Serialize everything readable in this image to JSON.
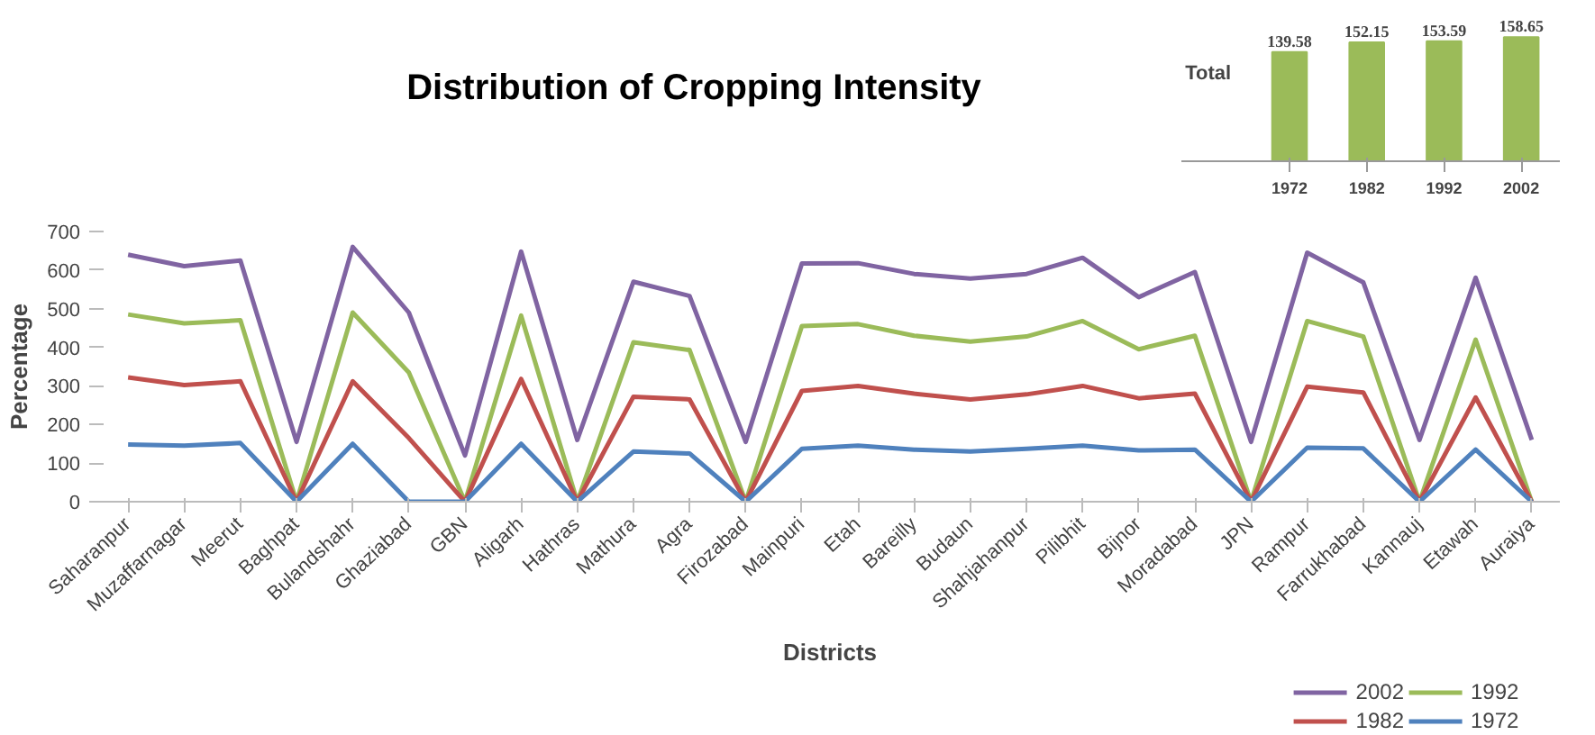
{
  "chart_data": [
    {
      "type": "line",
      "title": "Distribution of Cropping Intensity",
      "xlabel": "Districts",
      "ylabel": "Percentage",
      "categories": [
        "Saharanpur",
        "Muzaffarnagar",
        "Meerut",
        "Baghpat",
        "Bulandshahr",
        "Ghaziabad",
        "GBN",
        "Aligarh",
        "Hathras",
        "Mathura",
        "Agra",
        "Firozabad",
        "Mainpuri",
        "Etah",
        "Bareilly",
        "Budaun",
        "Shahjahanpur",
        "Pilibhit",
        "Bijnor",
        "Moradabad",
        "JPN",
        "Rampur",
        "Farrukhabad",
        "Kannauj",
        "Etawah",
        "Auraiya"
      ],
      "series": [
        {
          "name": "2002",
          "color": "#8064a2",
          "values": [
            640,
            610,
            625,
            155,
            660,
            490,
            120,
            648,
            160,
            570,
            533,
            155,
            617,
            618,
            590,
            578,
            590,
            632,
            530,
            595,
            155,
            645,
            568,
            160,
            580,
            160
          ]
        },
        {
          "name": "1992",
          "color": "#9bbb59",
          "values": [
            485,
            462,
            470,
            0,
            490,
            335,
            0,
            482,
            0,
            413,
            393,
            0,
            455,
            460,
            430,
            415,
            428,
            468,
            395,
            430,
            0,
            468,
            428,
            0,
            420,
            0
          ]
        },
        {
          "name": "1982",
          "color": "#c0504d",
          "values": [
            322,
            302,
            312,
            0,
            312,
            165,
            0,
            318,
            0,
            272,
            265,
            0,
            287,
            300,
            280,
            265,
            278,
            300,
            268,
            280,
            0,
            298,
            283,
            0,
            270,
            0
          ]
        },
        {
          "name": "1972",
          "color": "#4f81bd",
          "values": [
            148,
            145,
            152,
            0,
            150,
            0,
            0,
            150,
            0,
            130,
            125,
            0,
            137,
            145,
            135,
            130,
            137,
            145,
            133,
            135,
            0,
            140,
            138,
            0,
            135,
            0
          ]
        }
      ],
      "ylim": [
        0,
        700
      ],
      "yticks": [
        0,
        100,
        200,
        300,
        400,
        500,
        600,
        700
      ],
      "grid": false,
      "legend": "bottom right"
    },
    {
      "type": "bar",
      "categories": [
        "1972",
        "1982",
        "1992",
        "2002"
      ],
      "series": [
        {
          "name": "Total",
          "color": "#9bbb59",
          "values": [
            139.58,
            152.15,
            153.59,
            158.65
          ]
        }
      ],
      "data_labels": true,
      "tick_labels": "x"
    }
  ]
}
